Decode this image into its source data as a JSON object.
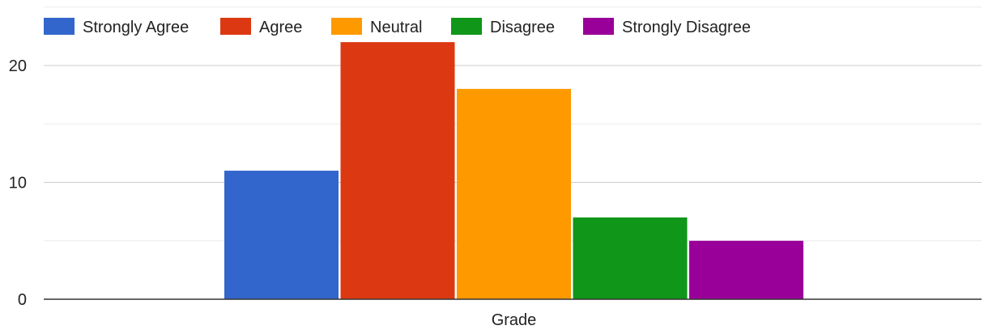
{
  "chart_data": {
    "type": "bar",
    "title": "",
    "xlabel": "",
    "ylabel": "",
    "categories": [
      "Grade"
    ],
    "ylim": [
      0,
      25
    ],
    "yticks": [
      0,
      10,
      20
    ],
    "grid": true,
    "legend_position": "top-left",
    "series": [
      {
        "name": "Strongly Agree",
        "color": "#3366cc",
        "values": [
          11
        ]
      },
      {
        "name": "Agree",
        "color": "#dc3912",
        "values": [
          22
        ]
      },
      {
        "name": "Neutral",
        "color": "#ff9900",
        "values": [
          18
        ]
      },
      {
        "name": "Disagree",
        "color": "#109618",
        "values": [
          7
        ]
      },
      {
        "name": "Strongly Disagree",
        "color": "#990099",
        "values": [
          5
        ]
      }
    ]
  }
}
